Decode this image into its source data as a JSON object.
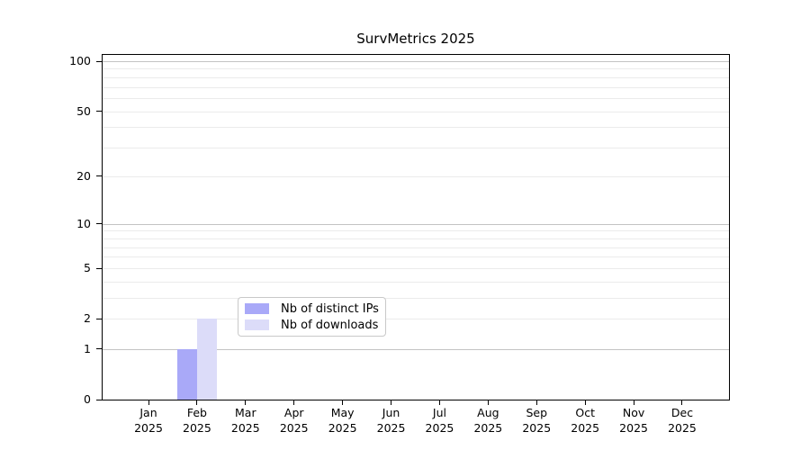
{
  "title": "SurvMetrics 2025",
  "colors": {
    "background": "#ffffff",
    "spine": "#000000",
    "text": "#000000",
    "grid_major": "#c3c3c3",
    "grid_minor": "#ebebeb",
    "legend_border": "#c9c9c9",
    "bar_distinct_ips": "#a9a9f8",
    "bar_downloads": "#dcdcf9"
  },
  "chart_data": {
    "type": "bar",
    "title": "SurvMetrics 2025",
    "xlabel": "",
    "ylabel": "",
    "categories": [
      "Jan 2025",
      "Feb 2025",
      "Mar 2025",
      "Apr 2025",
      "May 2025",
      "Jun 2025",
      "Jul 2025",
      "Aug 2025",
      "Sep 2025",
      "Oct 2025",
      "Nov 2025",
      "Dec 2025"
    ],
    "x_ticks": [
      {
        "month": "Jan",
        "year": "2025"
      },
      {
        "month": "Feb",
        "year": "2025"
      },
      {
        "month": "Mar",
        "year": "2025"
      },
      {
        "month": "Apr",
        "year": "2025"
      },
      {
        "month": "May",
        "year": "2025"
      },
      {
        "month": "Jun",
        "year": "2025"
      },
      {
        "month": "Jul",
        "year": "2025"
      },
      {
        "month": "Aug",
        "year": "2025"
      },
      {
        "month": "Sep",
        "year": "2025"
      },
      {
        "month": "Oct",
        "year": "2025"
      },
      {
        "month": "Nov",
        "year": "2025"
      },
      {
        "month": "Dec",
        "year": "2025"
      }
    ],
    "series": [
      {
        "name": "Nb of distinct IPs",
        "color": "#a9a9f8",
        "values": [
          0,
          1,
          0,
          0,
          0,
          0,
          0,
          0,
          0,
          0,
          0,
          0
        ]
      },
      {
        "name": "Nb of downloads",
        "color": "#dcdcf9",
        "values": [
          0,
          2,
          0,
          0,
          0,
          0,
          0,
          0,
          0,
          0,
          0,
          0
        ]
      }
    ],
    "y_axis": {
      "scale": "log10(value+1)",
      "ticks": [
        0,
        1,
        2,
        5,
        10,
        20,
        50,
        100
      ],
      "major_gridlines": [
        1,
        10,
        100
      ],
      "minor_gridlines": [
        2,
        3,
        4,
        5,
        6,
        7,
        8,
        9,
        20,
        30,
        40,
        50,
        60,
        70,
        80,
        90
      ],
      "ylim": [
        0,
        110
      ],
      "grid": true
    },
    "legend": {
      "position": "lower center inside",
      "items": [
        "Nb of distinct IPs",
        "Nb of downloads"
      ]
    }
  }
}
